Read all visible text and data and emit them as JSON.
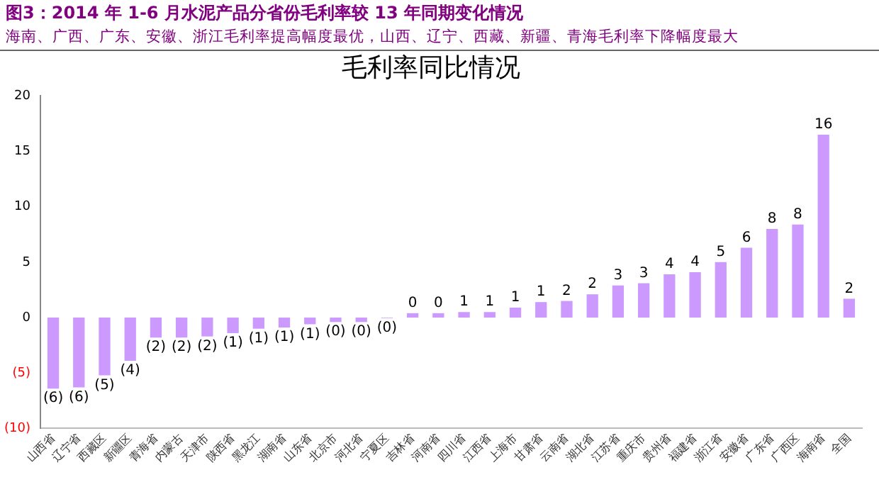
{
  "chart_data": {
    "type": "bar",
    "title": "图3：2014 年 1-6 月水泥产品分省份毛利率较 13 年同期变化情况",
    "subtitle": "海南、广西、广东、安徽、浙江毛利率提高幅度最优，山西、辽宁、西藏、新疆、青海毛利率下降幅度最大",
    "annotations": [
      "毛利率同比情况"
    ],
    "categories": [
      "山西省",
      "辽宁省",
      "西藏区",
      "新疆区",
      "青海省",
      "内蒙古",
      "天津市",
      "陕西省",
      "黑龙江",
      "湖南省",
      "山东省",
      "北京市",
      "河北省",
      "宁夏区",
      "吉林省",
      "河南省",
      "四川省",
      "江西省",
      "上海市",
      "甘肃省",
      "云南省",
      "湖北省",
      "江苏省",
      "重庆市",
      "贵州省",
      "福建省",
      "浙江省",
      "安徽省",
      "广东省",
      "广西区",
      "海南省",
      "全国"
    ],
    "values": [
      -6.4,
      -6.3,
      -5.2,
      -3.9,
      -1.8,
      -1.8,
      -1.7,
      -1.4,
      -1.0,
      -0.9,
      -0.6,
      -0.4,
      -0.4,
      -0.05,
      0.4,
      0.4,
      0.5,
      0.5,
      0.9,
      1.4,
      1.5,
      2.1,
      2.9,
      3.1,
      3.9,
      4.1,
      5.0,
      6.3,
      8.0,
      8.4,
      16.5,
      1.7
    ],
    "value_labels": [
      "(6)",
      "(6)",
      "(5)",
      "(4)",
      "(2)",
      "(2)",
      "(2)",
      "(1)",
      "(1)",
      "(1)",
      "(1)",
      "(0)",
      "(0)",
      "(0)",
      "0",
      "0",
      "1",
      "1",
      "1",
      "1",
      "2",
      "2",
      "3",
      "3",
      "4",
      "4",
      "5",
      "6",
      "8",
      "8",
      "16",
      "2"
    ],
    "color": "#cc99ff",
    "ylim": [
      -10,
      20
    ],
    "yticks": [
      {
        "value": -10,
        "label": "(10)"
      },
      {
        "value": -5,
        "label": "(5)"
      },
      0,
      5,
      10,
      15,
      20
    ],
    "grid": false,
    "legend": false
  }
}
